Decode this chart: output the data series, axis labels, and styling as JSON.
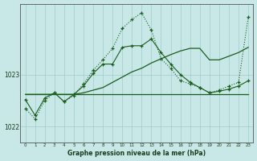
{
  "bg_color": "#c8e8e8",
  "grid_color": "#a0cccc",
  "line_color": "#1a5c1a",
  "hours": [
    0,
    1,
    2,
    3,
    4,
    5,
    6,
    7,
    8,
    9,
    10,
    11,
    12,
    13,
    14,
    15,
    16,
    17,
    18,
    19,
    20,
    21,
    22,
    23
  ],
  "ylim": [
    1021.7,
    1024.35
  ],
  "yticks": [
    1022,
    1023
  ],
  "xlabel": "Graphe pression niveau de la mer (hPa)",
  "curve_dotted": [
    1022.35,
    1022.15,
    1022.5,
    1022.65,
    1022.48,
    1022.6,
    1022.82,
    1023.08,
    1023.28,
    1023.5,
    1023.88,
    1024.05,
    1024.18,
    1023.85,
    1023.3,
    1023.12,
    1022.88,
    1022.82,
    1022.75,
    1022.65,
    1022.7,
    1022.78,
    1022.85,
    1024.1
  ],
  "curve_solid_markers": [
    1022.52,
    1022.22,
    1022.55,
    1022.65,
    1022.48,
    1022.62,
    1022.78,
    1023.02,
    1023.2,
    1023.2,
    1023.52,
    1023.55,
    1023.55,
    1023.68,
    1023.42,
    1023.2,
    1023.0,
    1022.85,
    1022.75,
    1022.65,
    1022.68,
    1022.72,
    1022.78,
    1022.88
  ],
  "curve_rising": [
    1022.62,
    1022.62,
    1022.62,
    1022.62,
    1022.62,
    1022.62,
    1022.65,
    1022.7,
    1022.75,
    1022.85,
    1022.95,
    1023.05,
    1023.12,
    1023.22,
    1023.3,
    1023.38,
    1023.45,
    1023.5,
    1023.5,
    1023.28,
    1023.28,
    1023.35,
    1023.42,
    1023.52
  ],
  "curve_flat": [
    1022.62,
    1022.62,
    1022.62,
    1022.62,
    1022.62,
    1022.62,
    1022.62,
    1022.62,
    1022.62,
    1022.62,
    1022.62,
    1022.62,
    1022.62,
    1022.62,
    1022.62,
    1022.62,
    1022.62,
    1022.62,
    1022.62,
    1022.62,
    1022.62,
    1022.62,
    1022.62,
    1022.62
  ]
}
